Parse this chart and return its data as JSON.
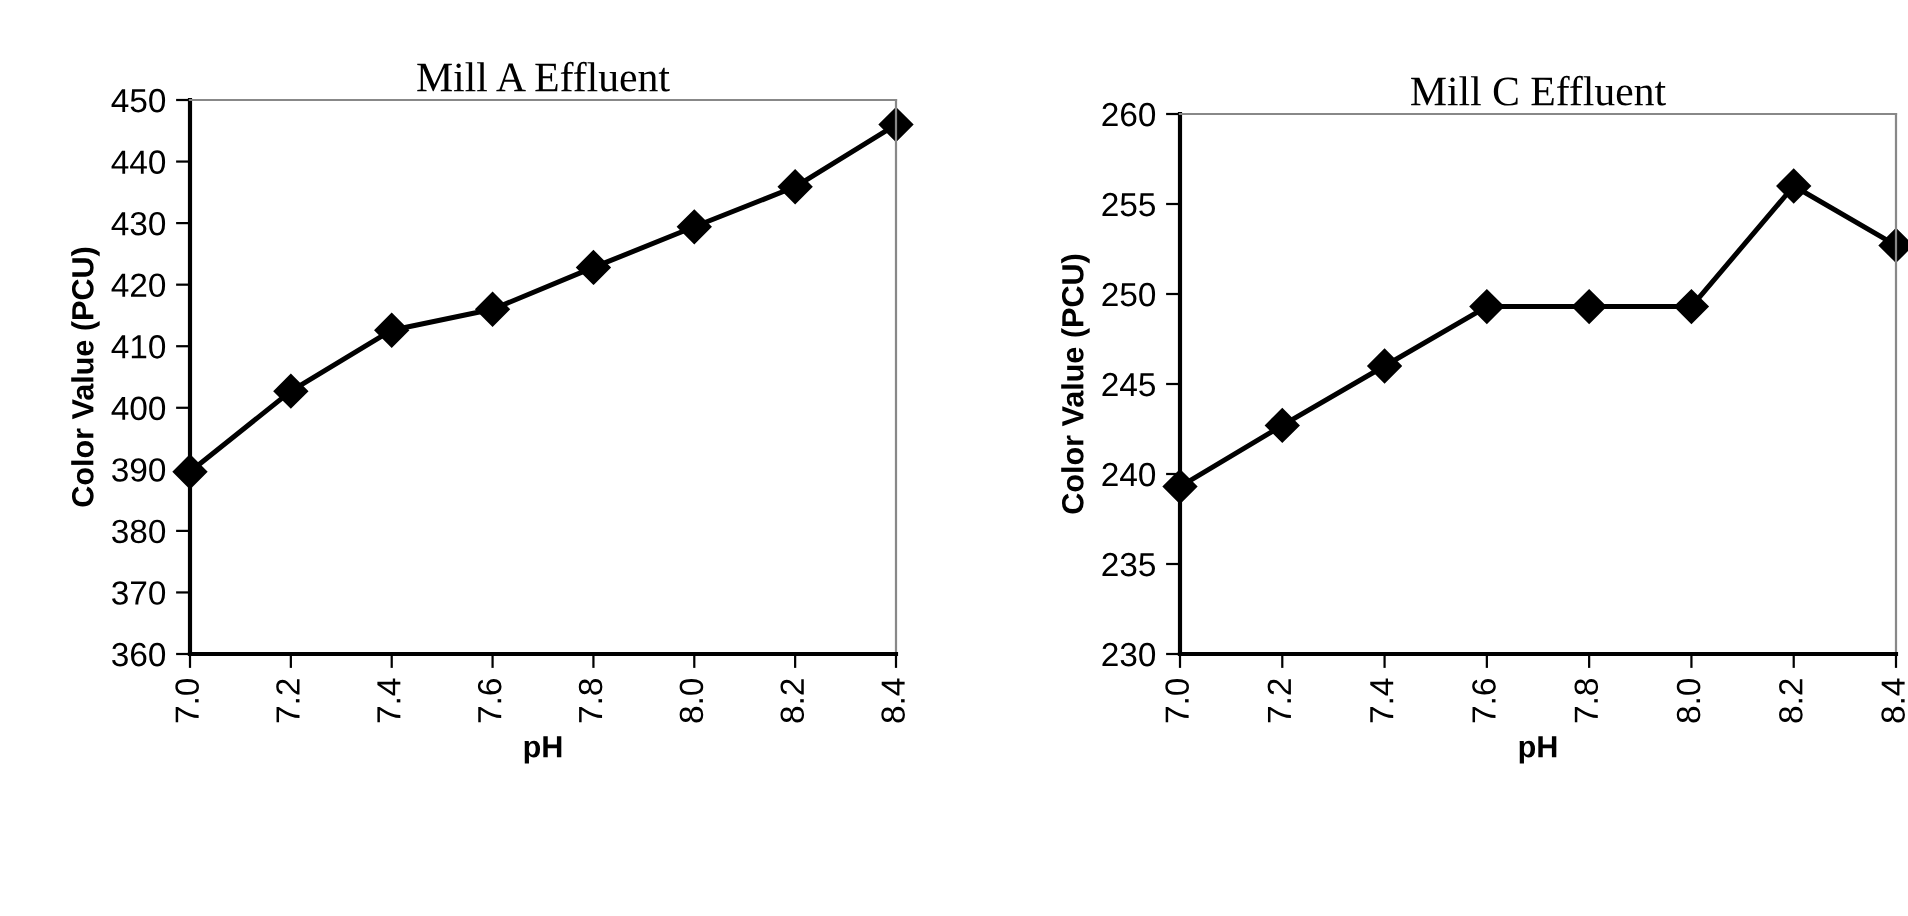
{
  "chart_data": [
    {
      "type": "line",
      "title": "Mill A Effluent",
      "xlabel": "pH",
      "ylabel": "Color Value (PCU)",
      "x": [
        7.0,
        7.2,
        7.4,
        7.6,
        7.8,
        8.0,
        8.2,
        8.4
      ],
      "series": [
        {
          "color": "#000000",
          "values": [
            389.6,
            402.7,
            412.6,
            416.0,
            422.8,
            429.4,
            435.9,
            446.0
          ]
        }
      ],
      "xlim": [
        7.0,
        8.4
      ],
      "ylim": [
        360,
        450
      ],
      "xticks": [
        {
          "value": 7.0,
          "label": "7.0"
        },
        {
          "value": 7.2,
          "label": "7.2"
        },
        {
          "value": 7.4,
          "label": "7.4"
        },
        {
          "value": 7.6,
          "label": "7.6"
        },
        {
          "value": 7.8,
          "label": "7.8"
        },
        {
          "value": 8.0,
          "label": "8.0"
        },
        {
          "value": 8.2,
          "label": "8.2"
        },
        {
          "value": 8.4,
          "label": "8.4"
        }
      ],
      "yticks": [
        360,
        370,
        380,
        390,
        400,
        410,
        420,
        430,
        440,
        450
      ],
      "marker": "diamond",
      "line_style": "solid"
    },
    {
      "type": "line",
      "title": "Mill C Effluent",
      "xlabel": "pH",
      "ylabel": "Color Value (PCU)",
      "x": [
        7.0,
        7.2,
        7.4,
        7.6,
        7.8,
        8.0,
        8.2,
        8.4
      ],
      "series": [
        {
          "color": "#000000",
          "values": [
            239.3,
            242.7,
            246.0,
            249.3,
            249.3,
            249.3,
            256.0,
            252.7
          ]
        }
      ],
      "xlim": [
        7.0,
        8.4
      ],
      "ylim": [
        230,
        260
      ],
      "xticks": [
        {
          "value": 7.0,
          "label": "7.0"
        },
        {
          "value": 7.2,
          "label": "7.2"
        },
        {
          "value": 7.4,
          "label": "7.4"
        },
        {
          "value": 7.6,
          "label": "7.6"
        },
        {
          "value": 7.8,
          "label": "7.8"
        },
        {
          "value": 8.0,
          "label": "8.0"
        },
        {
          "value": 8.2,
          "label": "8.2"
        },
        {
          "value": 8.4,
          "label": "8.4"
        }
      ],
      "yticks": [
        230,
        235,
        240,
        245,
        250,
        255,
        260
      ],
      "marker": "diamond",
      "line_style": "solid"
    }
  ]
}
